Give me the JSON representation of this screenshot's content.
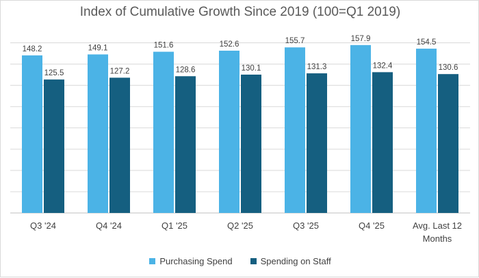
{
  "chart_data": {
    "type": "bar",
    "title": "Index of Cumulative Growth Since 2019 (100=Q1 2019)",
    "categories": [
      "Q3 '24",
      "Q4 '24",
      "Q1 '25",
      "Q2 '25",
      "Q3 '25",
      "Q4 '25",
      "Avg. Last 12 Months"
    ],
    "category_lines": [
      [
        "Q3 '24"
      ],
      [
        "Q4 '24"
      ],
      [
        "Q1 '25"
      ],
      [
        "Q2 '25"
      ],
      [
        "Q3 '25"
      ],
      [
        "Q4 '25"
      ],
      [
        "Avg. Last 12",
        "Months"
      ]
    ],
    "series": [
      {
        "name": "Purchasing Spend",
        "values": [
          148.2,
          149.1,
          151.6,
          152.6,
          155.7,
          157.9,
          154.5
        ],
        "color": "#4bb3e6"
      },
      {
        "name": "Spending on Staff",
        "values": [
          125.5,
          127.2,
          128.6,
          130.1,
          131.3,
          132.4,
          130.6
        ],
        "color": "#155f80"
      }
    ],
    "ylim": [
      0,
      170
    ],
    "grid": true,
    "legend": "bottom"
  }
}
